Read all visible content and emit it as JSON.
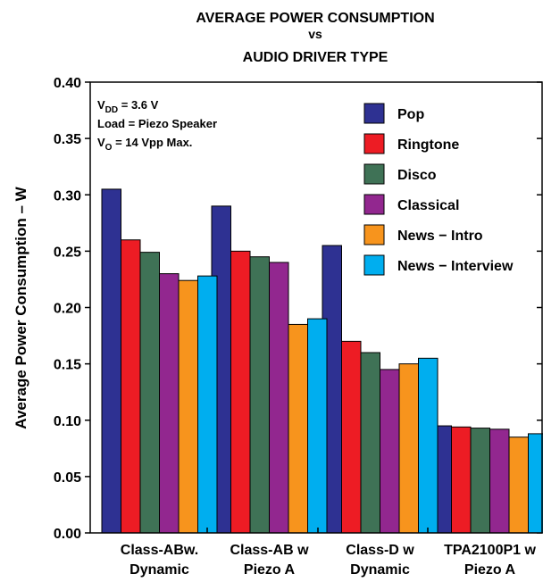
{
  "chart_data": {
    "type": "bar",
    "title_lines": [
      "AVERAGE POWER CONSUMPTION",
      "vs",
      "AUDIO DRIVER TYPE"
    ],
    "ylabel": "Average Power Consumption – W",
    "xlabel": "",
    "ylim": [
      0,
      0.4
    ],
    "yticks": [
      "0.00",
      "0.05",
      "0.10",
      "0.15",
      "0.20",
      "0.25",
      "0.30",
      "0.35",
      "0.40"
    ],
    "grid": false,
    "legend_position": "top-right",
    "categories": [
      [
        "Class-ABw.",
        "Dynamic"
      ],
      [
        "Class-AB w",
        "Piezo A"
      ],
      [
        "Class-D w",
        "Dynamic"
      ],
      [
        "TPA2100P1 w",
        "Piezo A"
      ]
    ],
    "series": [
      {
        "name": "Pop",
        "color": "#2e3192",
        "values": [
          0.305,
          0.29,
          0.255,
          0.095
        ]
      },
      {
        "name": "Ringtone",
        "color": "#ed1c24",
        "values": [
          0.26,
          0.25,
          0.17,
          0.094
        ]
      },
      {
        "name": "Disco",
        "color": "#3f7256",
        "values": [
          0.249,
          0.245,
          0.16,
          0.093
        ]
      },
      {
        "name": "Classical",
        "color": "#92278f",
        "values": [
          0.23,
          0.24,
          0.145,
          0.092
        ]
      },
      {
        "name": "News − Intro",
        "color": "#f7941d",
        "values": [
          0.224,
          0.185,
          0.15,
          0.085
        ]
      },
      {
        "name": "News − Interview",
        "color": "#00aeef",
        "values": [
          0.228,
          0.19,
          0.155,
          0.088
        ]
      }
    ],
    "annotations": [
      {
        "base": "V",
        "sub": "DD",
        "rest": " = 3.6 V"
      },
      {
        "base": "Load = Piezo Speaker",
        "sub": "",
        "rest": ""
      },
      {
        "base": "V",
        "sub": "O",
        "rest": " = 14 Vpp Max."
      }
    ]
  }
}
